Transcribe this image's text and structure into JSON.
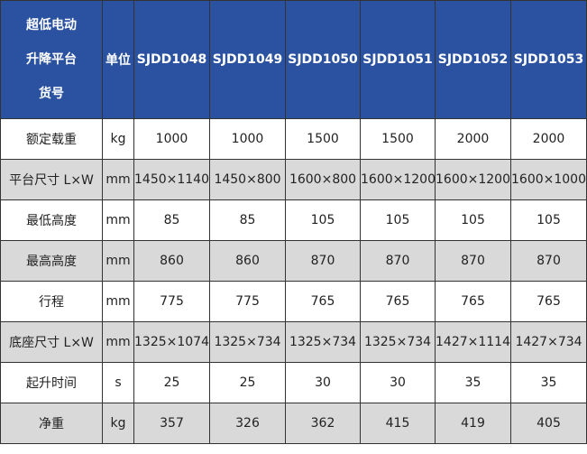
{
  "header": {
    "title_lines": [
      "超低电动",
      "升降平台",
      "货号"
    ],
    "unit": "单位",
    "models": [
      "SJDD1048",
      "SJDD1049",
      "SJDD1050",
      "SJDD1051",
      "SJDD1052",
      "SJDD1053"
    ]
  },
  "colors": {
    "header_bg": "#2a52a0",
    "alt_row_bg": "#d9d9d9"
  },
  "rows": [
    {
      "label": "额定载重",
      "unit": "kg",
      "values": [
        "1000",
        "1000",
        "1500",
        "1500",
        "2000",
        "2000"
      ]
    },
    {
      "label": "平台尺寸 L×W",
      "unit": "mm",
      "values": [
        "1450×1140",
        "1450×800",
        "1600×800",
        "1600×1200",
        "1600×1200",
        "1600×1000"
      ]
    },
    {
      "label": "最低高度",
      "unit": "mm",
      "values": [
        "85",
        "85",
        "105",
        "105",
        "105",
        "105"
      ]
    },
    {
      "label": "最高高度",
      "unit": "mm",
      "values": [
        "860",
        "860",
        "870",
        "870",
        "870",
        "870"
      ]
    },
    {
      "label": "行程",
      "unit": "mm",
      "values": [
        "775",
        "775",
        "765",
        "765",
        "765",
        "765"
      ]
    },
    {
      "label": "底座尺寸 L×W",
      "unit": "mm",
      "values": [
        "1325×1074",
        "1325×734",
        "1325×734",
        "1325×734",
        "1427×1114",
        "1427×734"
      ]
    },
    {
      "label": "起升时间",
      "unit": "s",
      "values": [
        "25",
        "25",
        "30",
        "30",
        "35",
        "35"
      ]
    },
    {
      "label": "净重",
      "unit": "kg",
      "values": [
        "357",
        "326",
        "362",
        "415",
        "419",
        "405"
      ]
    }
  ]
}
